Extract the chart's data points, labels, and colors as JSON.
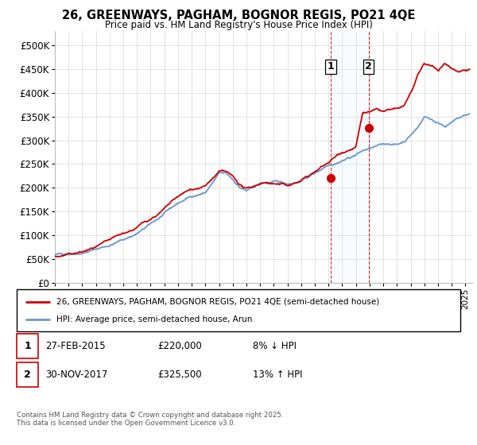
{
  "title": "26, GREENWAYS, PAGHAM, BOGNOR REGIS, PO21 4QE",
  "subtitle": "Price paid vs. HM Land Registry's House Price Index (HPI)",
  "xlim_start": 1995.0,
  "xlim_end": 2025.5,
  "ylim": [
    0,
    530000
  ],
  "yticks": [
    0,
    50000,
    100000,
    150000,
    200000,
    250000,
    300000,
    350000,
    400000,
    450000,
    500000
  ],
  "ytick_labels": [
    "£0",
    "£50K",
    "£100K",
    "£150K",
    "£200K",
    "£250K",
    "£300K",
    "£350K",
    "£400K",
    "£450K",
    "£500K"
  ],
  "transaction1_date": 2015.15,
  "transaction1_price": 220000,
  "transaction1_label": "27-FEB-2015",
  "transaction1_pct": "8% ↓ HPI",
  "transaction2_date": 2017.92,
  "transaction2_price": 325500,
  "transaction2_label": "30-NOV-2017",
  "transaction2_pct": "13% ↑ HPI",
  "legend_line1": "26, GREENWAYS, PAGHAM, BOGNOR REGIS, PO21 4QE (semi-detached house)",
  "legend_line2": "HPI: Average price, semi-detached house, Arun",
  "line_color_red": "#cc0000",
  "line_color_blue": "#6699cc",
  "shade_color": "#ddeeff",
  "footer": "Contains HM Land Registry data © Crown copyright and database right 2025.\nThis data is licensed under the Open Government Licence v3.0.",
  "background_color": "#ffffff",
  "grid_color": "#dddddd",
  "hpi_xvals": [
    1995,
    1996,
    1997,
    1998,
    1999,
    2000,
    2001,
    2002,
    2003,
    2004,
    2005,
    2006,
    2007,
    2007.5,
    2008,
    2008.5,
    2009,
    2009.5,
    2010,
    2010.5,
    2011,
    2011.5,
    2012,
    2012.5,
    2013,
    2013.5,
    2014,
    2014.5,
    2015,
    2015.5,
    2016,
    2016.5,
    2017,
    2017.5,
    2018,
    2018.5,
    2019,
    2019.5,
    2020,
    2020.5,
    2021,
    2021.5,
    2022,
    2022.5,
    2023,
    2023.5,
    2024,
    2024.5,
    2025.3
  ],
  "hpi_yvals": [
    58000,
    62000,
    68000,
    76000,
    85000,
    97000,
    110000,
    128000,
    148000,
    168000,
    183000,
    192000,
    230000,
    228000,
    215000,
    200000,
    192000,
    197000,
    205000,
    208000,
    207000,
    205000,
    203000,
    207000,
    212000,
    220000,
    228000,
    238000,
    250000,
    255000,
    262000,
    268000,
    275000,
    283000,
    287000,
    290000,
    292000,
    295000,
    293000,
    300000,
    315000,
    330000,
    355000,
    350000,
    342000,
    338000,
    345000,
    352000,
    360000
  ],
  "price_xvals": [
    1995,
    1996,
    1997,
    1998,
    1999,
    2000,
    2001,
    2002,
    2003,
    2004,
    2005,
    2006,
    2007,
    2007.5,
    2008,
    2008.5,
    2009,
    2009.5,
    2010,
    2010.5,
    2011,
    2011.5,
    2012,
    2012.5,
    2013,
    2013.5,
    2014,
    2014.5,
    2015,
    2015.5,
    2016,
    2016.5,
    2017,
    2017.5,
    2018,
    2018.5,
    2019,
    2019.5,
    2020,
    2020.5,
    2021,
    2021.5,
    2022,
    2022.5,
    2023,
    2023.5,
    2024,
    2024.5,
    2025.3
  ],
  "price_yvals": [
    55000,
    58000,
    62000,
    70000,
    77000,
    87000,
    100000,
    118000,
    138000,
    160000,
    173000,
    180000,
    208000,
    205000,
    192000,
    176000,
    165000,
    170000,
    178000,
    180000,
    178000,
    175000,
    172000,
    177000,
    183000,
    192000,
    200000,
    210000,
    220000,
    232000,
    243000,
    250000,
    258000,
    326000,
    328000,
    330000,
    325000,
    327000,
    325000,
    330000,
    358000,
    390000,
    415000,
    408000,
    400000,
    415000,
    405000,
    400000,
    408000
  ]
}
